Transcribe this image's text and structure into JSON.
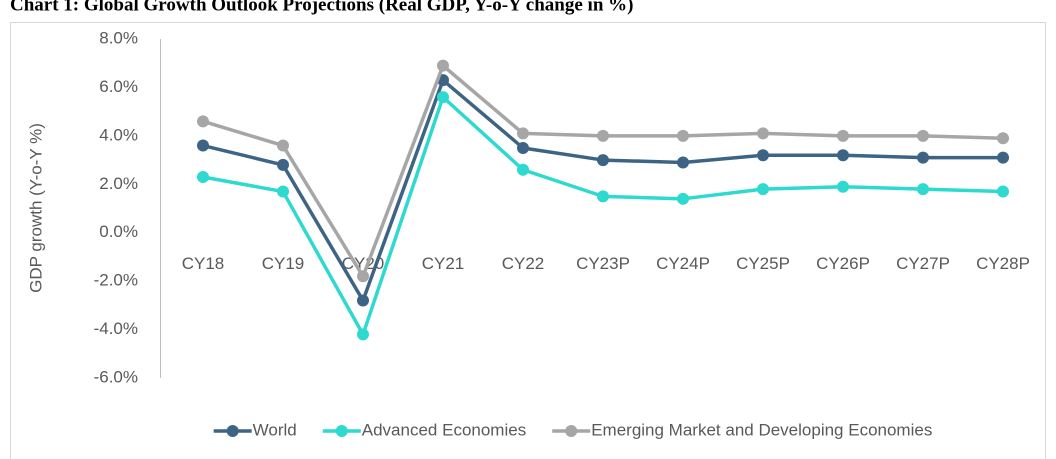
{
  "chart_data": {
    "type": "line",
    "title": "Chart 1: Global Growth Outlook Projections (Real GDP, Y-o-Y change in %)",
    "y_label": "GDP growth (Y-o-Y %)",
    "categories": [
      "CY18",
      "CY19",
      "CY20",
      "CY21",
      "CY22",
      "CY23P",
      "CY24P",
      "CY25P",
      "CY26P",
      "CY27P",
      "CY28P"
    ],
    "series": [
      {
        "name": "World",
        "color": "#3e6485",
        "values": [
          3.6,
          2.8,
          -2.8,
          6.3,
          3.5,
          3.0,
          2.9,
          3.2,
          3.2,
          3.1,
          3.1
        ]
      },
      {
        "name": "Advanced Economies",
        "color": "#2ed9d0",
        "values": [
          2.3,
          1.7,
          -4.2,
          5.6,
          2.6,
          1.5,
          1.4,
          1.8,
          1.9,
          1.8,
          1.7
        ]
      },
      {
        "name": "Emerging Market and Developing Economies",
        "color": "#a6a6a6",
        "values": [
          4.6,
          3.6,
          -1.8,
          6.9,
          4.1,
          4.0,
          4.0,
          4.1,
          4.0,
          4.0,
          3.9
        ]
      }
    ],
    "ylim": [
      -6,
      8
    ],
    "yticks": [
      {
        "value": -6,
        "label": "-6.0%"
      },
      {
        "value": -4,
        "label": "-4.0%"
      },
      {
        "value": -2,
        "label": "-2.0%"
      },
      {
        "value": 0,
        "label": "0.0%"
      },
      {
        "value": 2,
        "label": "2.0%"
      },
      {
        "value": 4,
        "label": "4.0%"
      },
      {
        "value": 6,
        "label": "6.0%"
      },
      {
        "value": 8,
        "label": "8.0%"
      }
    ],
    "grid": false,
    "legend": "bottom"
  }
}
